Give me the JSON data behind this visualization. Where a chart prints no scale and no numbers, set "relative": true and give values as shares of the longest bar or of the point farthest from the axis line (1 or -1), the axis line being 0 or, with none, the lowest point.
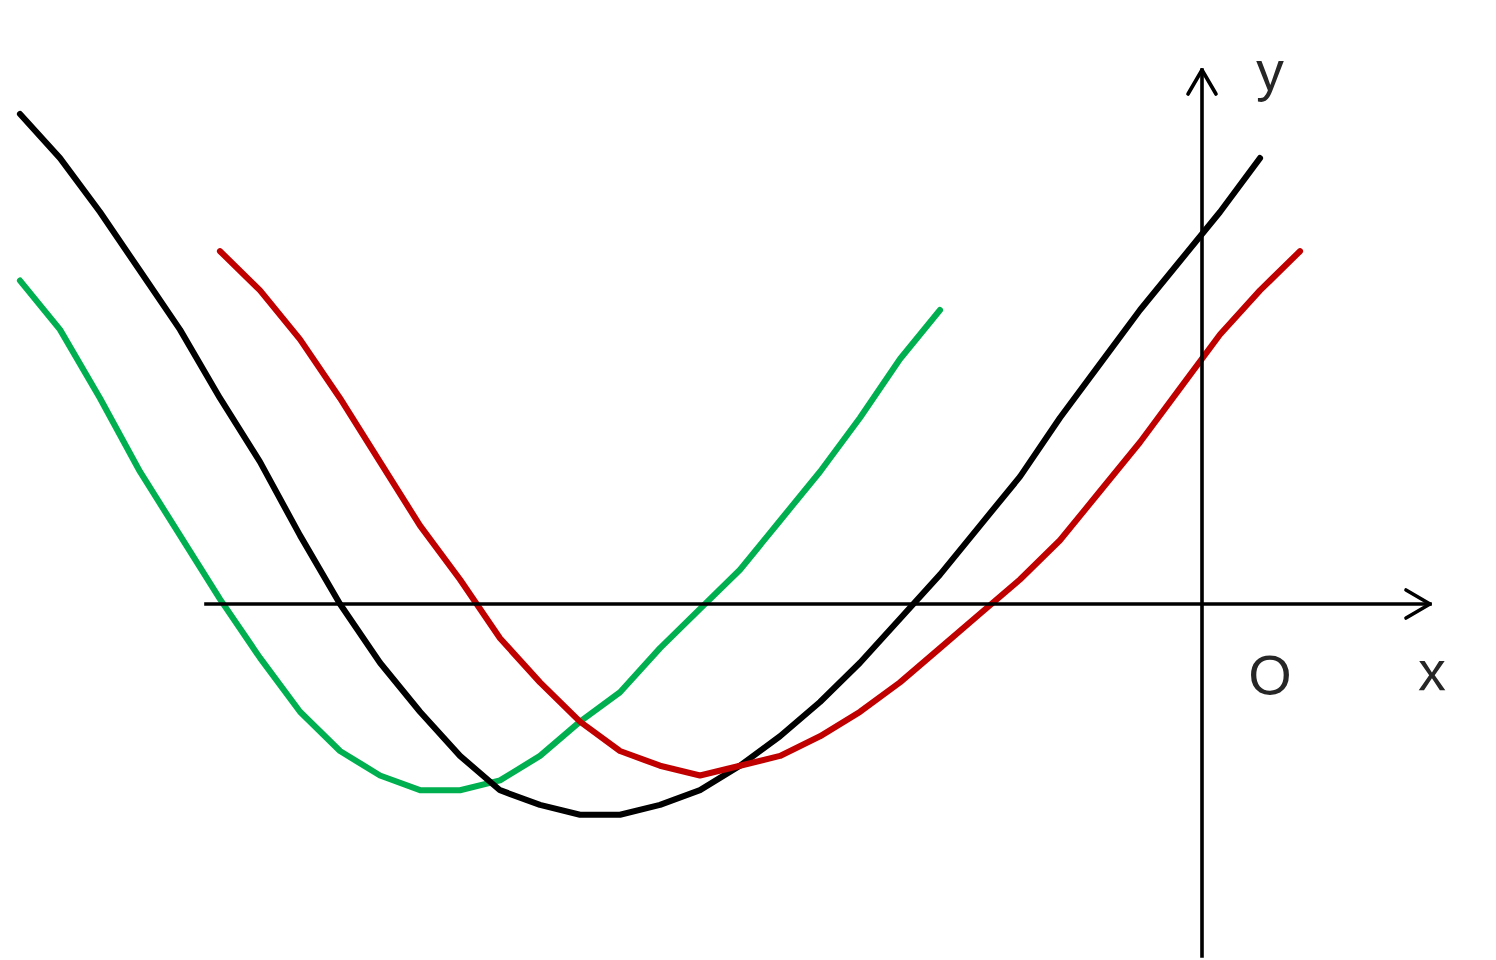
{
  "chart_data": {
    "type": "line",
    "relative": true,
    "xlabel": "x",
    "ylabel": "y",
    "annotations": [
      "O"
    ],
    "marker": "none",
    "line_style": "solid",
    "legend": false,
    "categories": [
      null,
      null,
      null,
      null,
      null,
      null,
      null,
      null,
      null,
      null,
      null,
      null,
      null,
      null,
      null,
      null,
      null,
      null,
      null,
      null,
      null,
      null,
      null,
      null,
      null,
      null,
      null,
      null,
      null,
      null,
      null,
      null,
      null
    ],
    "series": [
      {
        "color": "#00b050",
        "values": [
          0.66,
          0.56,
          0.42,
          0.27,
          0.14,
          0.01,
          -0.11,
          -0.22,
          -0.3,
          -0.35,
          -0.38,
          -0.38,
          -0.36,
          -0.31,
          -0.24,
          -0.18,
          -0.09,
          -0.01,
          0.07,
          0.17,
          0.27,
          0.38,
          0.5,
          0.6,
          null,
          null,
          null,
          null,
          null,
          null,
          null,
          null,
          null
        ]
      },
      {
        "color": "#000000",
        "values": [
          1,
          0.91,
          0.8,
          0.68,
          0.56,
          0.42,
          0.29,
          0.14,
          0,
          -0.12,
          -0.22,
          -0.31,
          -0.38,
          -0.41,
          -0.43,
          -0.43,
          -0.41,
          -0.38,
          -0.33,
          -0.27,
          -0.2,
          -0.12,
          -0.03,
          0.06,
          0.16,
          0.26,
          0.38,
          0.49,
          0.6,
          0.7,
          0.8,
          0.91,
          null
        ]
      },
      {
        "color": "#c00000",
        "values": [
          null,
          null,
          null,
          null,
          null,
          0.72,
          0.64,
          0.54,
          0.42,
          0.29,
          0.16,
          0.05,
          -0.07,
          -0.16,
          -0.24,
          -0.3,
          -0.33,
          -0.35,
          -0.33,
          -0.31,
          -0.27,
          -0.22,
          -0.16,
          -0.09,
          -0.02,
          0.05,
          0.13,
          0.23,
          0.33,
          0.44,
          0.55,
          0.64,
          0.72
        ]
      }
    ]
  }
}
